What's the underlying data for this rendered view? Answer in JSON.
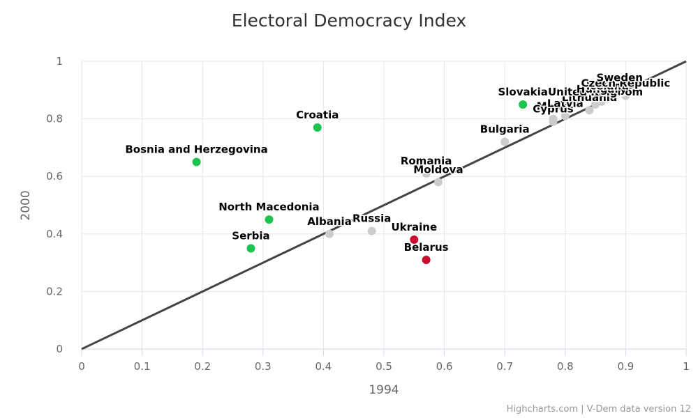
{
  "chart_data": {
    "type": "scatter",
    "title": "Electoral Democracy Index",
    "xlabel": "1994",
    "ylabel": "2000",
    "xlim": [
      0,
      1
    ],
    "ylim": [
      0,
      1
    ],
    "xticks": [
      "0",
      "0.1",
      "0.2",
      "0.3",
      "0.4",
      "0.5",
      "0.6",
      "0.7",
      "0.8",
      "0.9",
      "1"
    ],
    "yticks": [
      "0",
      "0.2",
      "0.4",
      "0.6",
      "0.8",
      "1"
    ],
    "grid": true,
    "reference_line": {
      "name": "x = y",
      "from": [
        0,
        0
      ],
      "to": [
        1,
        1
      ],
      "color": "#444444"
    },
    "colors": {
      "improved": "#1cc44f",
      "declined": "#c8102e",
      "stable": "#cccccc"
    },
    "points": [
      {
        "name": "Bosnia and Herzegovina",
        "x": 0.19,
        "y": 0.65,
        "group": "improved"
      },
      {
        "name": "Croatia",
        "x": 0.39,
        "y": 0.77,
        "group": "improved"
      },
      {
        "name": "North Macedonia",
        "x": 0.31,
        "y": 0.45,
        "group": "improved"
      },
      {
        "name": "Serbia",
        "x": 0.28,
        "y": 0.35,
        "group": "improved"
      },
      {
        "name": "Slovakia",
        "x": 0.73,
        "y": 0.85,
        "group": "improved"
      },
      {
        "name": "Albania",
        "x": 0.41,
        "y": 0.4,
        "group": "stable"
      },
      {
        "name": "Russia",
        "x": 0.48,
        "y": 0.41,
        "group": "stable"
      },
      {
        "name": "Ukraine",
        "x": 0.55,
        "y": 0.38,
        "group": "declined"
      },
      {
        "name": "Belarus",
        "x": 0.57,
        "y": 0.31,
        "group": "declined"
      },
      {
        "name": "Romania",
        "x": 0.57,
        "y": 0.61,
        "group": "stable"
      },
      {
        "name": "Moldova",
        "x": 0.59,
        "y": 0.58,
        "group": "stable"
      },
      {
        "name": "Bulgaria",
        "x": 0.7,
        "y": 0.72,
        "group": "stable"
      },
      {
        "name": "Malta",
        "x": 0.78,
        "y": 0.8,
        "group": "stable"
      },
      {
        "name": "Cyprus",
        "x": 0.78,
        "y": 0.79,
        "group": "stable"
      },
      {
        "name": "Latvia",
        "x": 0.8,
        "y": 0.81,
        "group": "stable"
      },
      {
        "name": "Lithuania",
        "x": 0.84,
        "y": 0.83,
        "group": "stable"
      },
      {
        "name": "United Kingdom",
        "x": 0.85,
        "y": 0.85,
        "group": "stable"
      },
      {
        "name": "Hungary",
        "x": 0.86,
        "y": 0.86,
        "group": "stable"
      },
      {
        "name": "Iceland",
        "x": 0.87,
        "y": 0.87,
        "group": "stable"
      },
      {
        "name": "Czech Republic",
        "x": 0.9,
        "y": 0.88,
        "group": "stable"
      },
      {
        "name": "Sweden",
        "x": 0.89,
        "y": 0.9,
        "group": "stable"
      }
    ],
    "legend": "none"
  },
  "credits": "Highcharts.com | V-Dem data version 12"
}
